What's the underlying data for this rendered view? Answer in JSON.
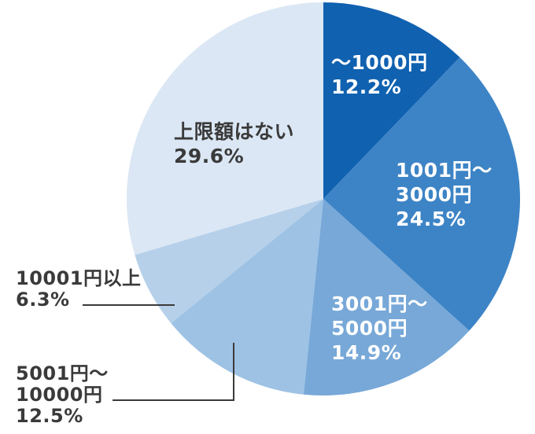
{
  "page": {
    "background_color": "#ffffff"
  },
  "chart_data": {
    "type": "pie",
    "title": "",
    "unit": "%",
    "start_angle_deg": 0,
    "direction": "clockwise",
    "values_total": 100.0,
    "leader_line_color": "#3a3a3a",
    "slices": [
      {
        "label": "～1000円",
        "value": 12.2,
        "display": "～1000円\n12.2%",
        "color": "#1061b0",
        "label_color": "#ffffff",
        "label_placement": "inside"
      },
      {
        "label": "1001円～3000円",
        "value": 24.5,
        "display": "1001円～\n3000円\n24.5%",
        "color": "#3d84c6",
        "label_color": "#ffffff",
        "label_placement": "inside"
      },
      {
        "label": "3001円～5000円",
        "value": 14.9,
        "display": "3001円～\n5000円\n14.9%",
        "color": "#77a8d8",
        "label_color": "#ffffff",
        "label_placement": "inside"
      },
      {
        "label": "5001円～10000円",
        "value": 12.5,
        "display": "5001円～\n10000円\n12.5%",
        "color": "#9dc2e4",
        "label_color": "#3a3a3a",
        "label_placement": "outside"
      },
      {
        "label": "10001円以上",
        "value": 6.3,
        "display": "10001円以上\n6.3%",
        "color": "#b6d0ea",
        "label_color": "#3a3a3a",
        "label_placement": "outside"
      },
      {
        "label": "上限額はない",
        "value": 29.6,
        "display": "上限額はない\n29.6%",
        "color": "#dbe7f4",
        "label_color": "#3a3a3a",
        "label_placement": "inside"
      }
    ]
  }
}
